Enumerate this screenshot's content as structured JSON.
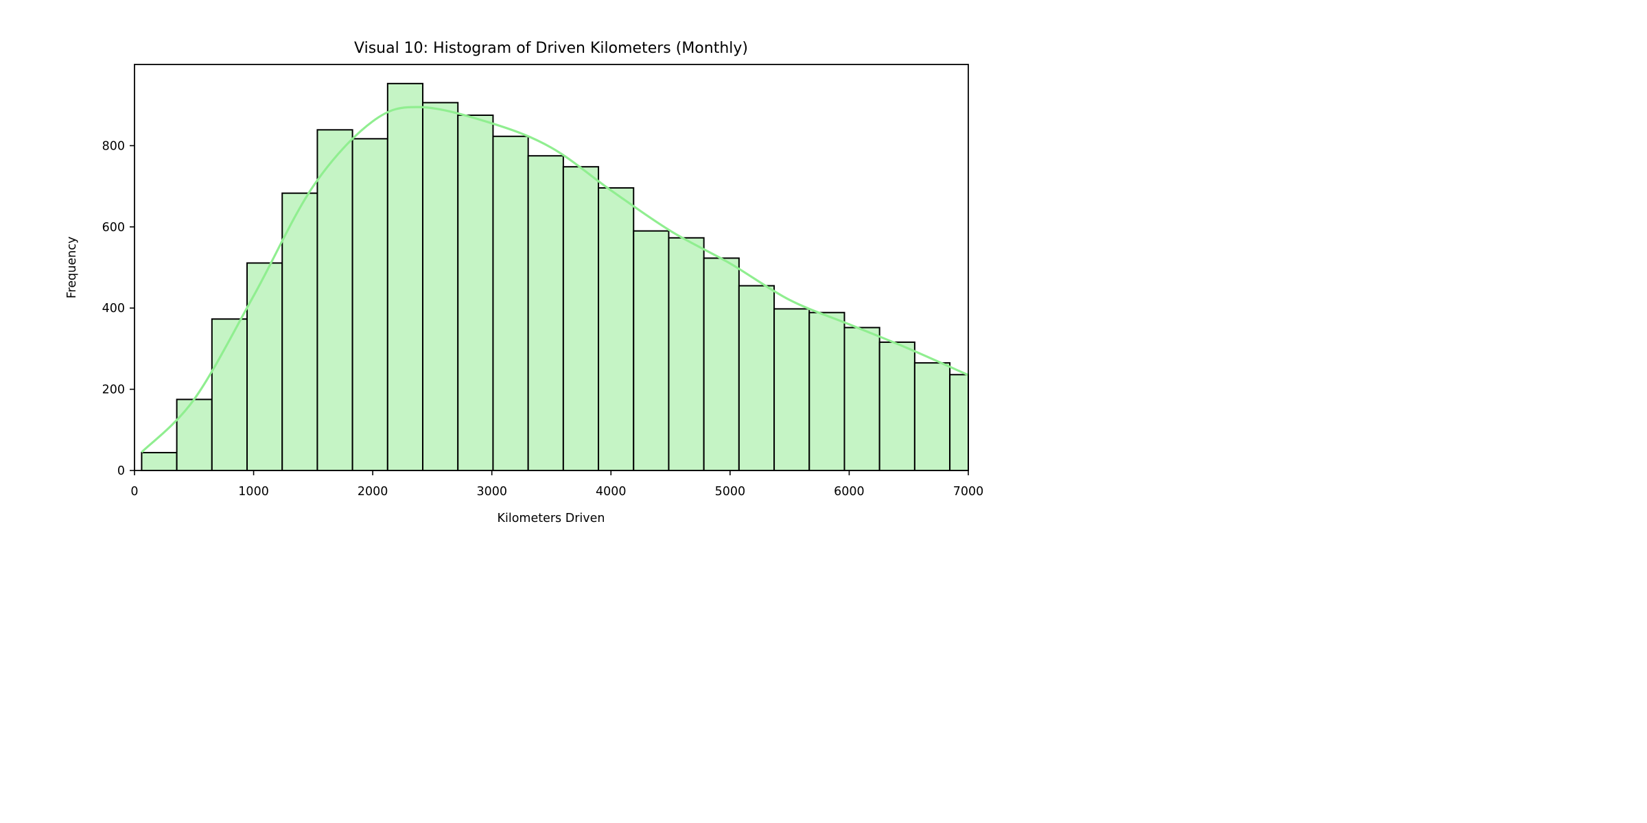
{
  "chart_data": {
    "type": "bar",
    "title": "Visual 10: Histogram of Driven Kilometers (Monthly)",
    "xlabel": "Kilometers Driven",
    "ylabel": "Frequency",
    "xlim": [
      0,
      7000
    ],
    "ylim": [
      0,
      1000
    ],
    "x_ticks": [
      0,
      1000,
      2000,
      3000,
      4000,
      5000,
      6000,
      7000
    ],
    "y_ticks": [
      0,
      200,
      400,
      600,
      800
    ],
    "grid": false,
    "bar_color": "#c5f4c5",
    "bar_edge_color": "#000000",
    "kde_color": "#90ee90",
    "bins": [
      {
        "x0": 60,
        "x1": 355,
        "count": 44
      },
      {
        "x0": 355,
        "x1": 650,
        "count": 175
      },
      {
        "x0": 650,
        "x1": 945,
        "count": 373
      },
      {
        "x0": 945,
        "x1": 1240,
        "count": 511
      },
      {
        "x0": 1240,
        "x1": 1535,
        "count": 683
      },
      {
        "x0": 1535,
        "x1": 1830,
        "count": 839
      },
      {
        "x0": 1830,
        "x1": 2125,
        "count": 817
      },
      {
        "x0": 2125,
        "x1": 2420,
        "count": 953
      },
      {
        "x0": 2420,
        "x1": 2715,
        "count": 906
      },
      {
        "x0": 2715,
        "x1": 3010,
        "count": 875
      },
      {
        "x0": 3010,
        "x1": 3305,
        "count": 823
      },
      {
        "x0": 3305,
        "x1": 3600,
        "count": 775
      },
      {
        "x0": 3600,
        "x1": 3895,
        "count": 748
      },
      {
        "x0": 3895,
        "x1": 4190,
        "count": 696
      },
      {
        "x0": 4190,
        "x1": 4485,
        "count": 590
      },
      {
        "x0": 4485,
        "x1": 4780,
        "count": 573
      },
      {
        "x0": 4780,
        "x1": 5075,
        "count": 523
      },
      {
        "x0": 5075,
        "x1": 5370,
        "count": 455
      },
      {
        "x0": 5370,
        "x1": 5665,
        "count": 398
      },
      {
        "x0": 5665,
        "x1": 5960,
        "count": 389
      },
      {
        "x0": 5960,
        "x1": 6255,
        "count": 352
      },
      {
        "x0": 6255,
        "x1": 6550,
        "count": 316
      },
      {
        "x0": 6550,
        "x1": 6845,
        "count": 265
      },
      {
        "x0": 6845,
        "x1": 7000,
        "count": 236
      }
    ],
    "kde": {
      "x": [
        60,
        500,
        1000,
        1500,
        2000,
        2400,
        3000,
        3500,
        4000,
        4500,
        5000,
        5500,
        6000,
        6500,
        7000
      ],
      "y": [
        45,
        175,
        430,
        700,
        860,
        895,
        855,
        795,
        690,
        590,
        510,
        420,
        360,
        300,
        235
      ]
    }
  }
}
